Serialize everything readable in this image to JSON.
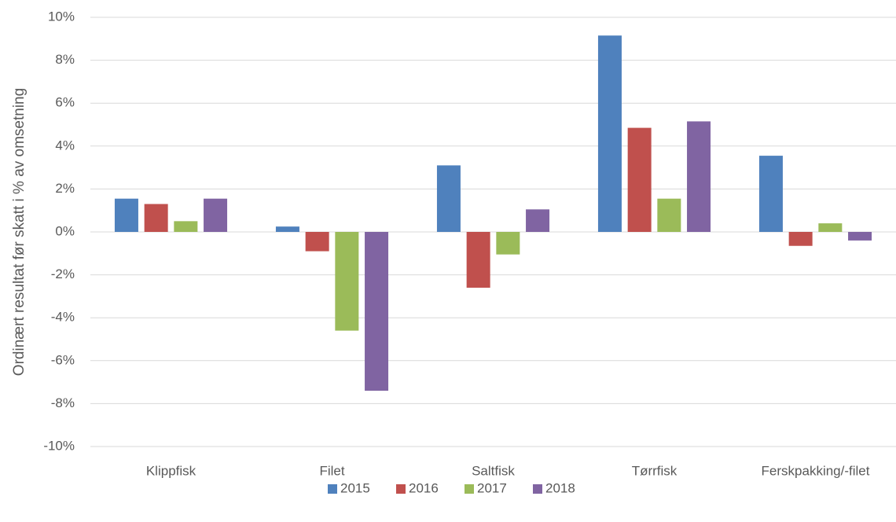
{
  "chart_data": {
    "type": "bar",
    "y_label": "Ordinært resultat før skatt i % av omsetning",
    "categories": [
      "Klippfisk",
      "Filet",
      "Saltfisk",
      "Tørrfisk",
      "Ferskpakking/-filet"
    ],
    "series": [
      {
        "name": "2015",
        "color": "#4f81bd",
        "values": [
          1.55,
          0.25,
          3.1,
          9.15,
          3.55
        ]
      },
      {
        "name": "2016",
        "color": "#c0504d",
        "values": [
          1.3,
          -0.9,
          -2.6,
          4.85,
          -0.65
        ]
      },
      {
        "name": "2017",
        "color": "#9bbb59",
        "values": [
          0.5,
          -4.6,
          -1.05,
          1.55,
          0.4
        ]
      },
      {
        "name": "2018",
        "color": "#8064a2",
        "values": [
          1.55,
          -7.4,
          1.05,
          5.15,
          -0.4
        ]
      }
    ],
    "ylim": [
      -10,
      10
    ],
    "yticks": [
      {
        "value": -10,
        "label": "-10%"
      },
      {
        "value": -8,
        "label": "-8%"
      },
      {
        "value": -6,
        "label": "-6%"
      },
      {
        "value": -4,
        "label": "-4%"
      },
      {
        "value": -2,
        "label": "-2%"
      },
      {
        "value": 0,
        "label": "0%"
      },
      {
        "value": 2,
        "label": "2%"
      },
      {
        "value": 4,
        "label": "4%"
      },
      {
        "value": 6,
        "label": "6%"
      },
      {
        "value": 8,
        "label": "8%"
      },
      {
        "value": 10,
        "label": "10%"
      }
    ],
    "grid": true,
    "legend": "bottom"
  }
}
